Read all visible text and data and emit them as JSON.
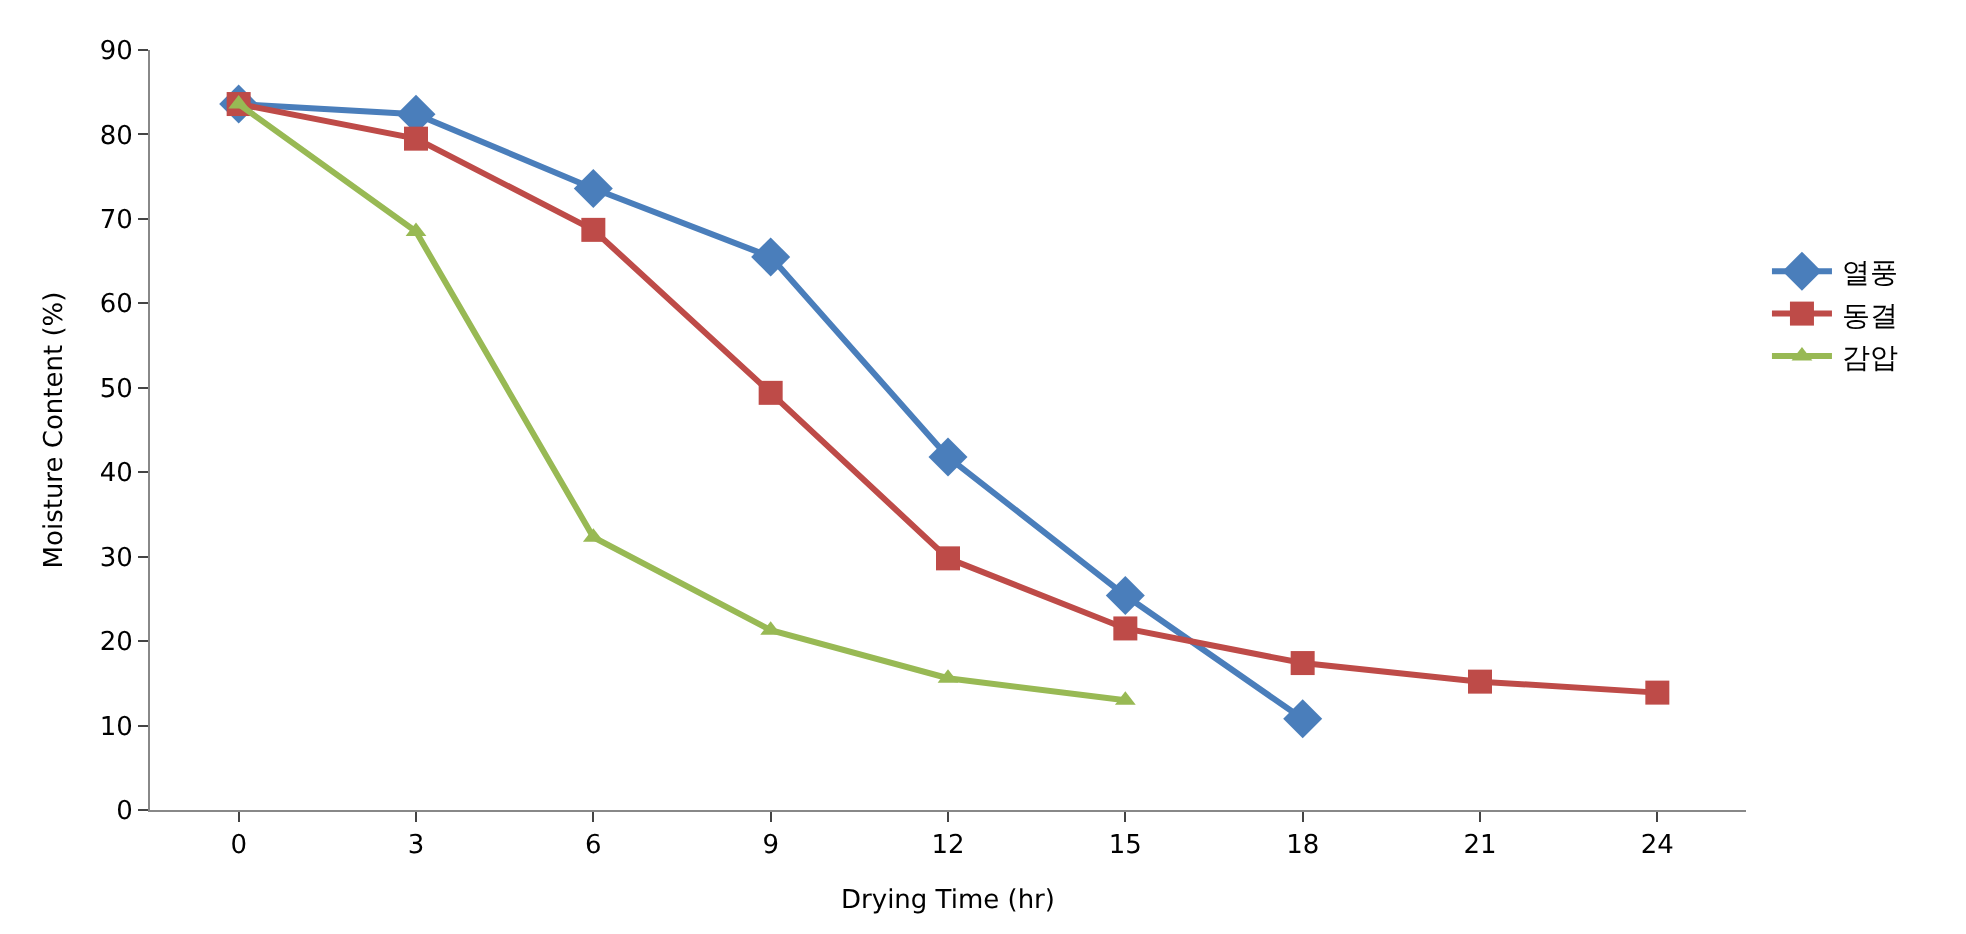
{
  "chart_data": {
    "type": "line",
    "xlabel": "Drying Time (hr)",
    "ylabel": "Moisture Content (%)",
    "categories": [
      "0",
      "3",
      "6",
      "9",
      "12",
      "15",
      "18",
      "21",
      "24"
    ],
    "ylim": [
      0,
      90
    ],
    "yticks": [
      0,
      10,
      20,
      30,
      40,
      50,
      60,
      70,
      80,
      90
    ],
    "legend": "right",
    "line_style": "solid",
    "series": [
      {
        "name": "열풍",
        "color": "#4a7ebb",
        "marker": "diamond",
        "values": [
          83.6,
          82.4,
          73.6,
          65.5,
          41.8,
          25.4,
          10.8,
          null,
          null
        ]
      },
      {
        "name": "동결",
        "color": "#be4b48",
        "marker": "square",
        "values": [
          83.6,
          79.5,
          68.7,
          49.4,
          29.8,
          21.5,
          17.4,
          15.2,
          13.9
        ]
      },
      {
        "name": "감압",
        "color": "#98b954",
        "marker": "triangle",
        "values": [
          83.6,
          68.5,
          32.3,
          21.3,
          15.6,
          13.0,
          null,
          null,
          null
        ]
      }
    ]
  }
}
